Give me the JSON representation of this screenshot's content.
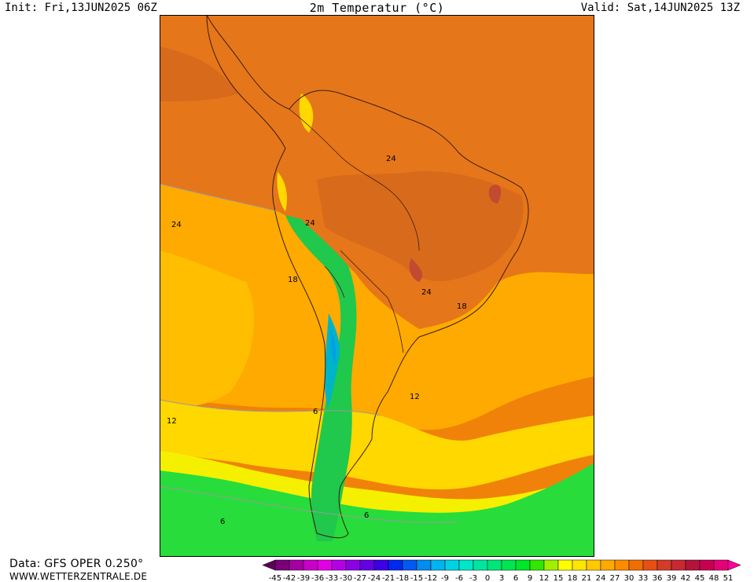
{
  "header": {
    "init": "Init: Fri,13JUN2025 06Z",
    "title": "2m Temperatur (°C)",
    "valid": "Valid: Sat,14JUN2025 13Z"
  },
  "footer": {
    "data_source": "Data: GFS OPER 0.250°",
    "website": "WWW.WETTERZENTRALE.DE"
  },
  "map": {
    "region": "South America",
    "contour_labels": [
      "24",
      "24",
      "24",
      "24",
      "18",
      "18",
      "12",
      "12",
      "6",
      "6",
      "6"
    ]
  },
  "legend": {
    "labels": [
      "-45",
      "-42",
      "-39",
      "-36",
      "-33",
      "-30",
      "-27",
      "-24",
      "-21",
      "-18",
      "-15",
      "-12",
      "-9",
      "-6",
      "-3",
      "0",
      "3",
      "6",
      "9",
      "12",
      "15",
      "18",
      "21",
      "24",
      "27",
      "30",
      "33",
      "36",
      "39",
      "42",
      "45",
      "48",
      "51"
    ],
    "colors": [
      "#5e0059",
      "#7a007a",
      "#a400a4",
      "#c800c8",
      "#e400e4",
      "#b400e6",
      "#8c00e6",
      "#6400e6",
      "#3c00e6",
      "#0028f0",
      "#005af0",
      "#008cf0",
      "#00b4f0",
      "#00d2e6",
      "#00e6c8",
      "#00e6a0",
      "#00e678",
      "#00e650",
      "#00e628",
      "#32e600",
      "#a0f000",
      "#ffff00",
      "#ffe600",
      "#ffc800",
      "#ffaa00",
      "#ff8c00",
      "#f06e00",
      "#e65014",
      "#d23c28",
      "#c82832",
      "#b4143c",
      "#c80050",
      "#e60078",
      "#ff00a0"
    ]
  }
}
